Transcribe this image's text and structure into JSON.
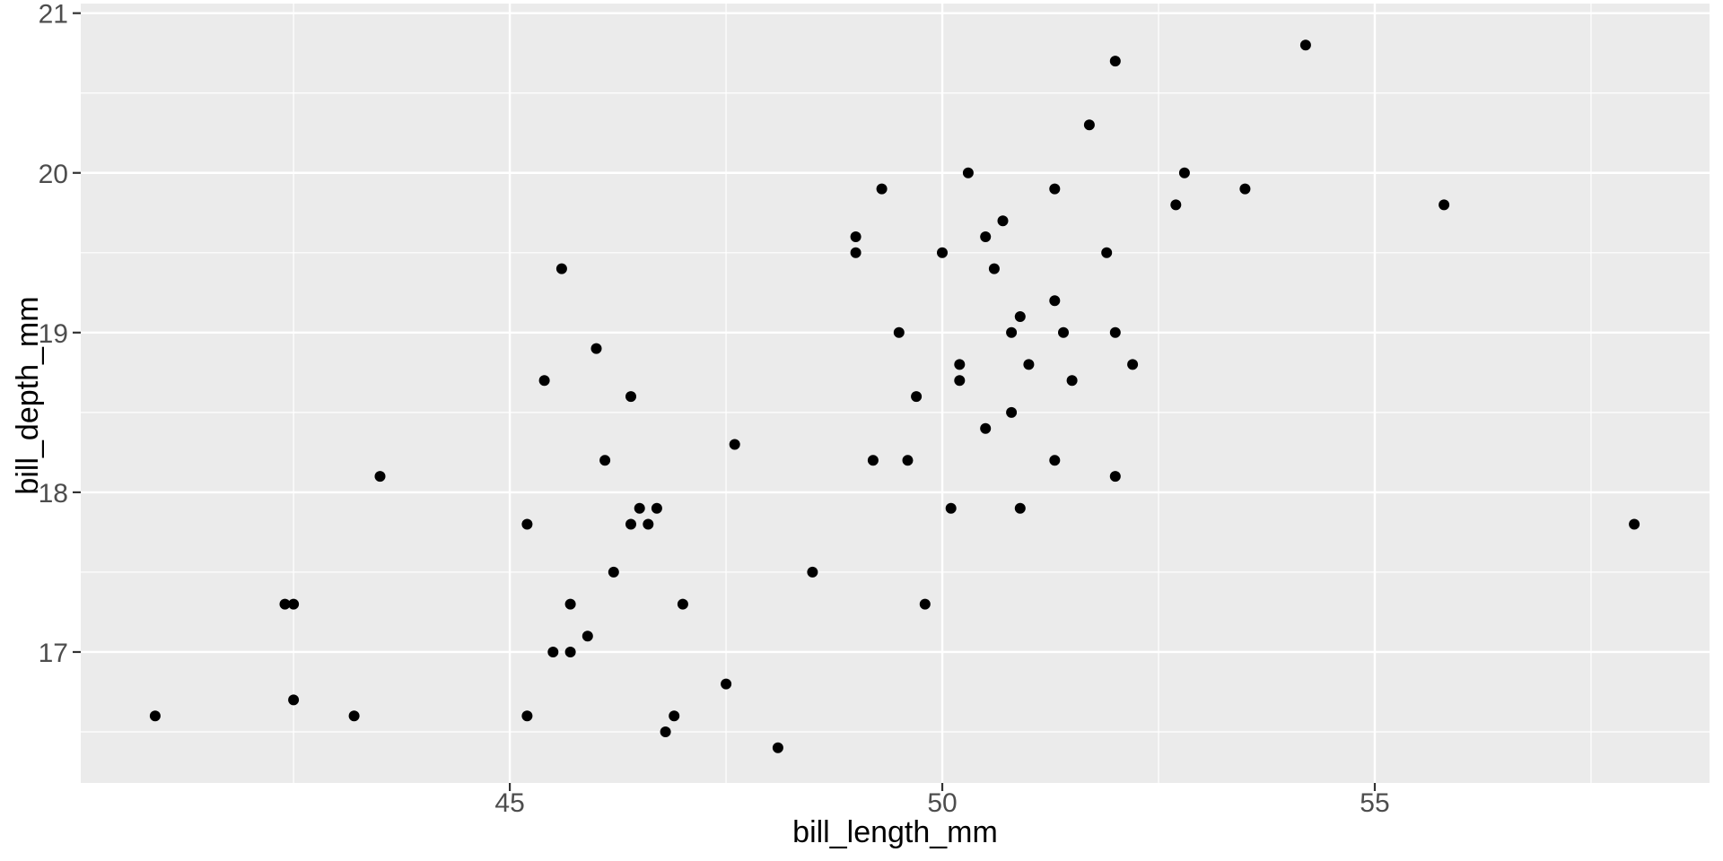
{
  "chart_data": {
    "type": "scatter",
    "title": "",
    "xlabel": "bill_length_mm",
    "ylabel": "bill_depth_mm",
    "xlim": [
      40.04,
      58.87
    ],
    "ylim": [
      16.18,
      21.06
    ],
    "x_major_ticks": [
      45,
      50,
      55
    ],
    "x_minor_ticks": [
      42.5,
      47.5,
      52.5,
      57.5
    ],
    "y_major_ticks": [
      17,
      18,
      19,
      20,
      21
    ],
    "y_minor_ticks": [
      16.5,
      17.5,
      18.5,
      19.5,
      20.5
    ],
    "x_tick_labels": [
      "45",
      "50",
      "55"
    ],
    "y_tick_labels": [
      "17",
      "18",
      "19",
      "20",
      "21"
    ],
    "grid": true,
    "legend_position": "none",
    "style": {
      "panel_bg": "#EBEBEB",
      "grid_major_color": "#FFFFFF",
      "grid_minor_color": "#FFFFFF",
      "point_color": "#000000",
      "point_radius": 6,
      "tick_mark_color": "#333333",
      "tick_label_color": "#4D4D4D",
      "axis_title_color": "#000000"
    },
    "points": [
      [
        46.5,
        17.9
      ],
      [
        50.0,
        19.5
      ],
      [
        51.3,
        19.2
      ],
      [
        45.4,
        18.7
      ],
      [
        52.7,
        19.8
      ],
      [
        45.2,
        17.8
      ],
      [
        46.1,
        18.2
      ],
      [
        51.3,
        18.2
      ],
      [
        46.0,
        18.9
      ],
      [
        51.3,
        19.9
      ],
      [
        46.6,
        17.8
      ],
      [
        51.7,
        20.3
      ],
      [
        47.0,
        17.3
      ],
      [
        52.0,
        18.1
      ],
      [
        45.9,
        17.1
      ],
      [
        50.5,
        19.6
      ],
      [
        50.3,
        20.0
      ],
      [
        58.0,
        17.8
      ],
      [
        46.4,
        18.6
      ],
      [
        49.2,
        18.2
      ],
      [
        42.4,
        17.3
      ],
      [
        48.5,
        17.5
      ],
      [
        43.2,
        16.6
      ],
      [
        50.6,
        19.4
      ],
      [
        46.7,
        17.9
      ],
      [
        52.0,
        19.0
      ],
      [
        50.5,
        18.4
      ],
      [
        49.5,
        19.0
      ],
      [
        46.4,
        17.8
      ],
      [
        52.8,
        20.0
      ],
      [
        40.9,
        16.6
      ],
      [
        54.2,
        20.8
      ],
      [
        42.5,
        16.7
      ],
      [
        51.0,
        18.8
      ],
      [
        49.7,
        18.6
      ],
      [
        47.5,
        16.8
      ],
      [
        47.6,
        18.3
      ],
      [
        52.0,
        20.7
      ],
      [
        46.9,
        16.6
      ],
      [
        53.5,
        19.9
      ],
      [
        49.0,
        19.5
      ],
      [
        46.2,
        17.5
      ],
      [
        50.9,
        19.1
      ],
      [
        45.5,
        17.0
      ],
      [
        50.9,
        17.9
      ],
      [
        50.8,
        18.5
      ],
      [
        50.1,
        17.9
      ],
      [
        49.0,
        19.6
      ],
      [
        51.5,
        18.7
      ],
      [
        49.8,
        17.3
      ],
      [
        48.1,
        16.4
      ],
      [
        51.4,
        19.0
      ],
      [
        45.7,
        17.3
      ],
      [
        50.7,
        19.7
      ],
      [
        42.5,
        17.3
      ],
      [
        52.2,
        18.8
      ],
      [
        45.2,
        16.6
      ],
      [
        49.3,
        19.9
      ],
      [
        50.2,
        18.8
      ],
      [
        45.6,
        19.4
      ],
      [
        51.9,
        19.5
      ],
      [
        46.8,
        16.5
      ],
      [
        45.7,
        17.0
      ],
      [
        55.8,
        19.8
      ],
      [
        43.5,
        18.1
      ],
      [
        49.6,
        18.2
      ],
      [
        50.8,
        19.0
      ],
      [
        50.2,
        18.7
      ]
    ]
  }
}
